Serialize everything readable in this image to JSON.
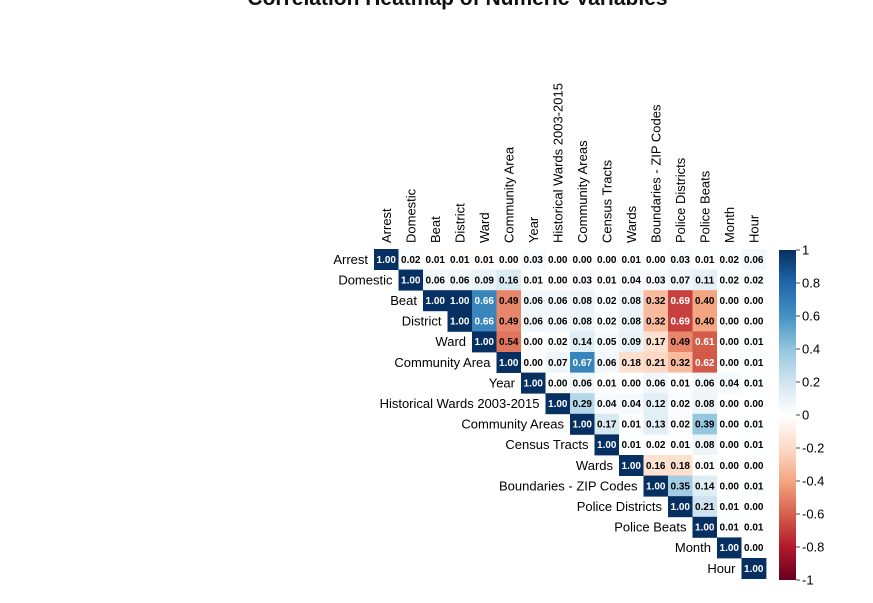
{
  "chart": {
    "title": "Correlation Heatmap of Numeric Variables"
  },
  "chart_data": {
    "type": "heatmap",
    "title": "Correlation Heatmap of Numeric Variables",
    "layout": "upper-triangle",
    "variables": [
      "Arrest",
      "Domestic",
      "Beat",
      "District",
      "Ward",
      "Community Area",
      "Year",
      "Historical Wards 2003-2015",
      "Community Areas",
      "Census Tracts",
      "Wards",
      "Boundaries - ZIP Codes",
      "Police Districts",
      "Police Beats",
      "Month",
      "Hour"
    ],
    "matrix": [
      [
        1.0,
        0.02,
        -0.01,
        -0.01,
        -0.01,
        0.0,
        0.03,
        0.0,
        0.0,
        0.0,
        0.01,
        0.0,
        0.03,
        0.01,
        0.02,
        0.06
      ],
      [
        0.02,
        1.0,
        0.06,
        0.06,
        0.09,
        0.16,
        0.01,
        0.0,
        0.03,
        0.01,
        0.04,
        0.03,
        0.07,
        0.11,
        0.02,
        0.02
      ],
      [
        -0.01,
        0.06,
        1.0,
        1.0,
        0.66,
        -0.49,
        0.06,
        0.06,
        0.08,
        0.02,
        0.08,
        -0.32,
        -0.69,
        -0.4,
        0.0,
        0.0
      ],
      [
        -0.01,
        0.06,
        1.0,
        1.0,
        0.66,
        -0.49,
        0.06,
        0.06,
        0.08,
        0.02,
        0.08,
        -0.32,
        -0.69,
        -0.4,
        0.0,
        0.0
      ],
      [
        -0.01,
        0.09,
        0.66,
        0.66,
        1.0,
        -0.54,
        0.0,
        0.02,
        0.14,
        0.05,
        0.09,
        -0.17,
        -0.49,
        -0.61,
        0.0,
        0.01
      ],
      [
        0.0,
        0.16,
        -0.49,
        -0.49,
        -0.54,
        1.0,
        0.0,
        0.07,
        0.67,
        0.06,
        -0.18,
        -0.21,
        -0.32,
        -0.62,
        0.0,
        0.01
      ],
      [
        0.03,
        0.01,
        0.06,
        0.06,
        0.0,
        0.0,
        1.0,
        0.0,
        0.06,
        0.01,
        0.0,
        0.06,
        0.01,
        0.06,
        0.04,
        0.01
      ],
      [
        0.0,
        0.0,
        0.06,
        0.06,
        0.02,
        0.07,
        0.0,
        1.0,
        0.29,
        0.04,
        0.04,
        0.12,
        0.02,
        0.08,
        0.0,
        0.0
      ],
      [
        0.0,
        0.03,
        0.08,
        0.08,
        0.14,
        0.67,
        0.06,
        0.29,
        1.0,
        0.17,
        0.01,
        0.13,
        0.02,
        0.39,
        0.0,
        0.01
      ],
      [
        0.0,
        0.01,
        0.02,
        0.02,
        0.05,
        0.06,
        0.01,
        0.04,
        0.17,
        1.0,
        0.01,
        0.02,
        0.01,
        0.08,
        0.0,
        0.01
      ],
      [
        0.01,
        0.04,
        0.08,
        0.08,
        0.09,
        -0.18,
        0.0,
        0.04,
        0.01,
        0.01,
        1.0,
        -0.16,
        -0.18,
        0.01,
        0.0,
        0.0
      ],
      [
        0.0,
        0.03,
        -0.32,
        -0.32,
        -0.17,
        -0.21,
        0.06,
        0.12,
        0.13,
        0.02,
        -0.16,
        1.0,
        0.35,
        0.14,
        0.0,
        0.01
      ],
      [
        0.03,
        0.07,
        -0.69,
        -0.69,
        -0.49,
        -0.32,
        0.01,
        0.02,
        0.02,
        0.01,
        -0.18,
        0.35,
        1.0,
        0.21,
        0.01,
        0.0
      ],
      [
        0.01,
        0.11,
        -0.4,
        -0.4,
        -0.61,
        -0.62,
        0.06,
        0.08,
        0.39,
        0.08,
        0.01,
        0.14,
        0.21,
        1.0,
        0.01,
        0.01
      ],
      [
        0.02,
        0.02,
        0.0,
        0.0,
        0.0,
        0.0,
        0.04,
        0.0,
        0.0,
        0.0,
        0.0,
        0.0,
        0.01,
        0.01,
        1.0,
        0.0
      ],
      [
        0.06,
        0.02,
        0.0,
        0.0,
        0.01,
        0.01,
        0.01,
        0.0,
        0.01,
        0.01,
        0.0,
        0.01,
        0.0,
        0.01,
        0.0,
        1.0
      ]
    ],
    "color_scale": {
      "min": -1,
      "max": 1,
      "ticks": [
        1,
        0.8,
        0.6,
        0.4,
        0.2,
        0,
        -0.2,
        -0.4,
        -0.6,
        -0.8,
        -1
      ],
      "colors": [
        "#67001f",
        "#b2182b",
        "#d6604d",
        "#f4a582",
        "#fddbc7",
        "#ffffff",
        "#d1e5f0",
        "#92c5de",
        "#4393c3",
        "#2166ac",
        "#053061"
      ]
    },
    "value_format": "2 decimals, absolute value",
    "legend": "right",
    "grid": false
  }
}
